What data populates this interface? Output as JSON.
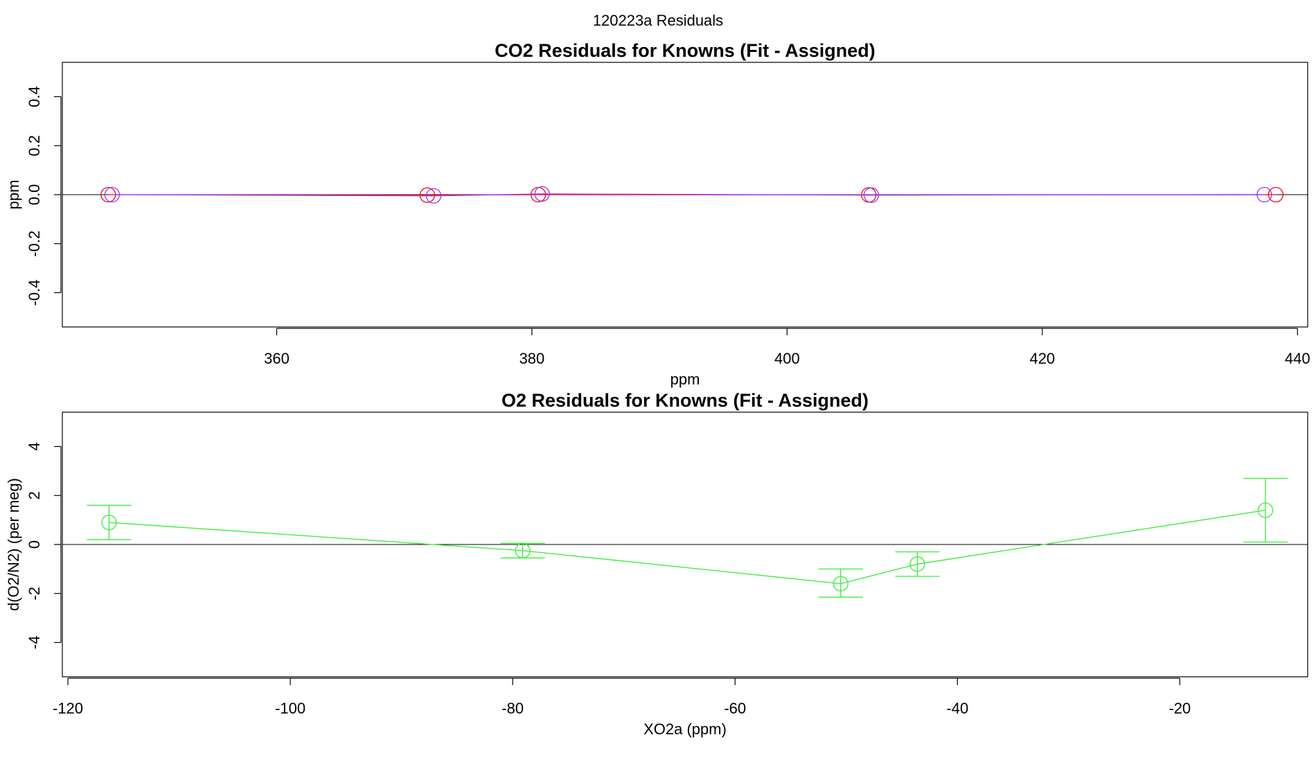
{
  "suptitle": "120223a  Residuals",
  "chart_data": [
    {
      "type": "line",
      "title": "CO2 Residuals for Knowns (Fit - Assigned)",
      "xlabel": "ppm",
      "ylabel": "ppm",
      "xlim": [
        343.2,
        440.8
      ],
      "ylim": [
        -0.54,
        0.54
      ],
      "xticks": [
        360,
        380,
        400,
        420,
        440
      ],
      "yticks": [
        -0.4,
        -0.2,
        0.0,
        0.2,
        0.4
      ],
      "ytick_labels": [
        "-0.4",
        "-0.2",
        "0.0",
        "0.2",
        "0.4"
      ],
      "zero_line": true,
      "series": [
        {
          "color": "#ff0000",
          "x": [
            346.8,
            371.8,
            380.5,
            406.4,
            438.3
          ],
          "y": [
            0.0,
            -0.002,
            0.0,
            -0.001,
            0.0
          ]
        },
        {
          "color": "#9933ff",
          "x": [
            347.1,
            372.3,
            380.8,
            406.6,
            437.4
          ],
          "y": [
            0.0,
            -0.005,
            0.003,
            -0.002,
            0.0
          ]
        }
      ]
    },
    {
      "type": "line",
      "title": "O2 Residuals for Knowns (Fit - Assigned)",
      "xlabel": "XO2a (ppm)",
      "ylabel": "d(O2/N2) (per meg)",
      "xlim": [
        -120.5,
        -8.5
      ],
      "ylim": [
        -5.4,
        5.4
      ],
      "xticks": [
        -120,
        -100,
        -80,
        -60,
        -40,
        -20
      ],
      "yticks": [
        -4,
        -2,
        0,
        2,
        4
      ],
      "ytick_labels": [
        "-4",
        "-2",
        "0",
        "2",
        "4"
      ],
      "zero_line": true,
      "series": [
        {
          "color": "#33ee33",
          "x": [
            -116.3,
            -79.1,
            -50.5,
            -43.6,
            -12.3
          ],
          "y": [
            0.9,
            -0.25,
            -1.6,
            -0.8,
            1.4
          ],
          "err_low": [
            0.2,
            -0.55,
            -2.15,
            -1.3,
            0.1
          ],
          "err_high": [
            1.6,
            0.05,
            -1.0,
            -0.3,
            2.7
          ]
        }
      ]
    }
  ]
}
